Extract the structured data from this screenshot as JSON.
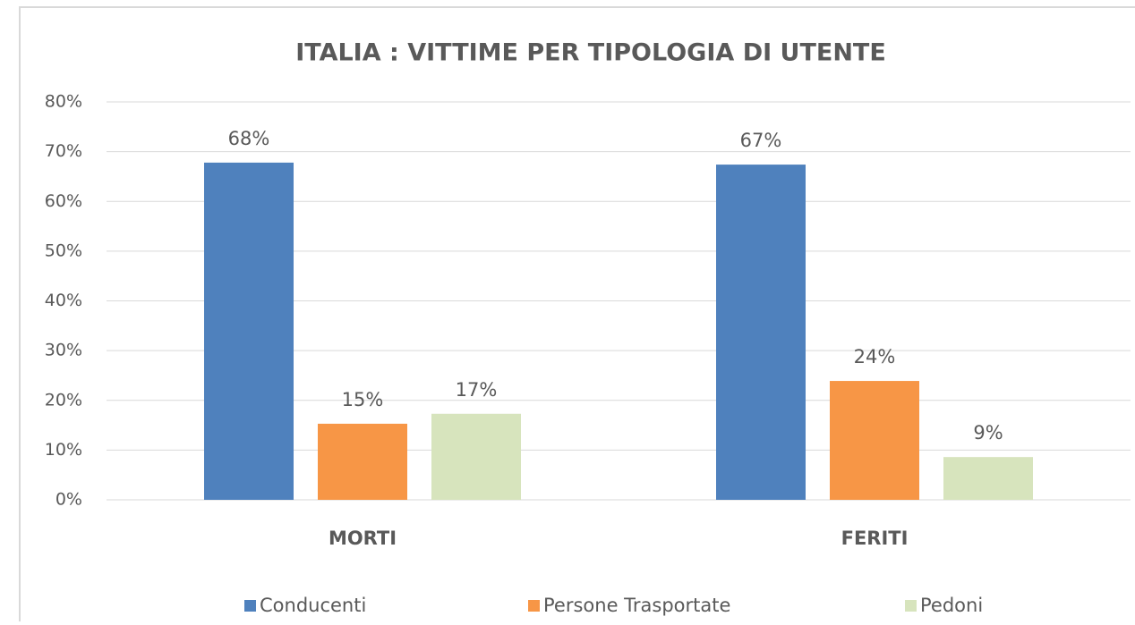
{
  "chart_data": {
    "type": "bar",
    "title": "ITALIA : VITTIME PER TIPOLOGIA DI UTENTE",
    "categories": [
      "MORTI",
      "FERITI"
    ],
    "series": [
      {
        "name": "Conducenti",
        "color": "#4f81bd",
        "values": [
          67.8,
          67.4
        ],
        "value_labels": [
          "68%",
          "67%"
        ]
      },
      {
        "name": "Persone Trasportate",
        "color": "#f79646",
        "values": [
          15.3,
          23.9
        ],
        "value_labels": [
          "15%",
          "24%"
        ]
      },
      {
        "name": "Pedoni",
        "color": "#d7e4bd",
        "values": [
          17.3,
          8.6
        ],
        "value_labels": [
          "17%",
          "9%"
        ]
      }
    ],
    "ylim": [
      0,
      80
    ],
    "yticks": [
      {
        "value": 0,
        "label": "0%"
      },
      {
        "value": 10,
        "label": "10%"
      },
      {
        "value": 20,
        "label": "20%"
      },
      {
        "value": 30,
        "label": "30%"
      },
      {
        "value": 40,
        "label": "40%"
      },
      {
        "value": 50,
        "label": "50%"
      },
      {
        "value": 60,
        "label": "60%"
      },
      {
        "value": 70,
        "label": "70%"
      },
      {
        "value": 80,
        "label": "80%"
      }
    ],
    "grid": true,
    "legend": "bottom"
  }
}
